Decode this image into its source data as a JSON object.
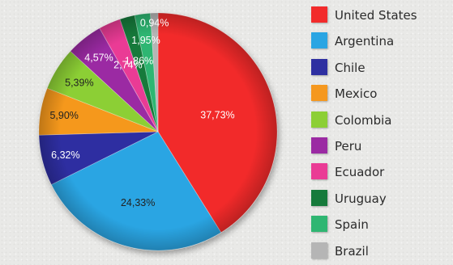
{
  "chart_data": {
    "type": "pie",
    "slices": [
      {
        "name": "United States",
        "value": 37.73,
        "label": "37,73%",
        "color": "#f22b2b",
        "text_color": "#ffffff"
      },
      {
        "name": "Argentina",
        "value": 24.33,
        "label": "24,33%",
        "color": "#2aa5e3",
        "text_color": "#222222"
      },
      {
        "name": "Chile",
        "value": 6.32,
        "label": "6,32%",
        "color": "#2e2fa1",
        "text_color": "#ffffff"
      },
      {
        "name": "Mexico",
        "value": 5.9,
        "label": "5,90%",
        "color": "#f5981f",
        "text_color": "#222222"
      },
      {
        "name": "Colombia",
        "value": 5.39,
        "label": "5,39%",
        "color": "#8ccf35",
        "text_color": "#222222"
      },
      {
        "name": "Peru",
        "value": 4.57,
        "label": "4,57%",
        "color": "#9b2aa3",
        "text_color": "#ffffff"
      },
      {
        "name": "Ecuador",
        "value": 2.74,
        "label": "2,74%",
        "color": "#ea3b95",
        "text_color": "#ffffff"
      },
      {
        "name": "Uruguay",
        "value": 1.86,
        "label": "1,86%",
        "color": "#167a3b",
        "text_color": "#ffffff"
      },
      {
        "name": "Spain",
        "value": 1.95,
        "label": "1,95%",
        "color": "#2fb672",
        "text_color": "#ffffff"
      },
      {
        "name": "Brazil",
        "value": 0.94,
        "label": "0,94%",
        "color": "#b5b5b5",
        "text_color": "#ffffff"
      }
    ],
    "legend_position": "right"
  }
}
